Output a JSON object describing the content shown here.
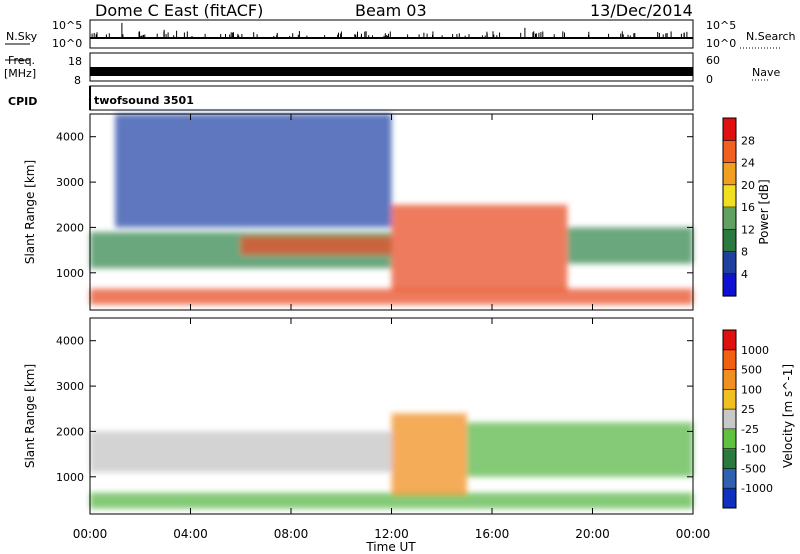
{
  "header": {
    "station": "Dome C East (fitACF)",
    "beam": "Beam 03",
    "date": "13/Dec/2014"
  },
  "top_strips": {
    "nsky_label": "N.Sky",
    "nsky_max": "10^5",
    "nsky_min": "10^0",
    "nsearch_label": "N.Search",
    "nsearch_max": "10^5",
    "nsearch_min": "10^0",
    "freq_label": "Freq.",
    "freq_unit": "[MHz]",
    "freq_max": "18",
    "freq_min": "8",
    "nave_label": "Nave",
    "nave_max": "60",
    "nave_min": "0",
    "cpid_label": "CPID",
    "cpid_value": "twofsound 3501"
  },
  "chart_data": [
    {
      "type": "heatmap",
      "name": "Power panel",
      "ylabel": "Slant Range [km]",
      "y_ticks": [
        1000,
        2000,
        3000,
        4000
      ],
      "ylim": [
        180,
        4500
      ],
      "colorbar_label": "Power [dB]",
      "colorbar_ticks": [
        "4",
        "8",
        "12",
        "16",
        "20",
        "24",
        "28"
      ],
      "colorbar_colors": [
        "#1010d0",
        "#2040a0",
        "#2a7a40",
        "#60a060",
        "#f0e020",
        "#f0a020",
        "#f06020",
        "#e01010"
      ],
      "bands": [
        {
          "x": [
            0,
            24
          ],
          "y": [
            300,
            650
          ],
          "level": "high"
        },
        {
          "x": [
            0,
            12
          ],
          "y": [
            1100,
            1900
          ],
          "level": "medium"
        },
        {
          "x": [
            6,
            12
          ],
          "y": [
            1400,
            1800
          ],
          "level": "high"
        },
        {
          "x": [
            12,
            19
          ],
          "y": [
            600,
            2500
          ],
          "level": "high"
        },
        {
          "x": [
            19,
            24
          ],
          "y": [
            1200,
            2000
          ],
          "level": "medium"
        },
        {
          "x": [
            1,
            12
          ],
          "y": [
            2000,
            4500
          ],
          "level": "low"
        }
      ]
    },
    {
      "type": "heatmap",
      "name": "Velocity panel",
      "ylabel": "Slant Range [km]",
      "xlabel": "Time UT",
      "x_ticks": [
        "00:00",
        "04:00",
        "08:00",
        "12:00",
        "16:00",
        "20:00",
        "00:00"
      ],
      "y_ticks": [
        1000,
        2000,
        3000,
        4000
      ],
      "ylim": [
        180,
        4500
      ],
      "colorbar_label": "Velocity [m s^-1]",
      "colorbar_ticks": [
        "1000",
        "500",
        "100",
        "25",
        "-25",
        "-100",
        "-500",
        "-1000"
      ],
      "colorbar_colors": [
        "#1030c0",
        "#3060b0",
        "#2a7a40",
        "#60c040",
        "#c8c8c8",
        "#f0c020",
        "#f09020",
        "#f06010",
        "#e01010"
      ],
      "bands": [
        {
          "x": [
            0,
            24
          ],
          "y": [
            300,
            650
          ],
          "level": "green"
        },
        {
          "x": [
            0,
            12
          ],
          "y": [
            1100,
            2000
          ],
          "level": "gray"
        },
        {
          "x": [
            12,
            15
          ],
          "y": [
            600,
            2400
          ],
          "level": "orange"
        },
        {
          "x": [
            15,
            24
          ],
          "y": [
            1000,
            2200
          ],
          "level": "green"
        }
      ]
    }
  ]
}
